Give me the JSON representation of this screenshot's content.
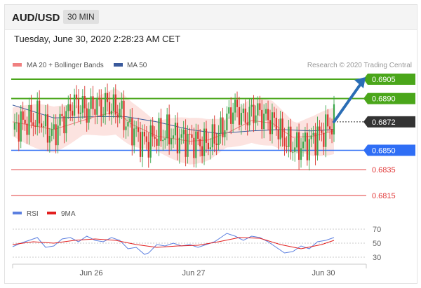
{
  "header": {
    "symbol": "AUD/USD",
    "timeframe": "30 MIN"
  },
  "datetime": "Tuesday, June 30, 2020 2:28:23 AM CET",
  "legend": {
    "ma20": "MA 20 + Bollinger Bands",
    "ma50": "MA 50",
    "credit": "Research © 2020 Trading Central",
    "rsi": "RSI",
    "ma9": "9MA"
  },
  "colors": {
    "ma20": "#f08080",
    "ma50": "#3a5a9c",
    "bands": "#fbd9d6",
    "bull": "#3aa64a",
    "bear": "#d9322b",
    "resistance": "#4aa61a",
    "support": "#2f6ef5",
    "weak_support": "#e23b3b",
    "current": "#333333",
    "rsi": "#5b7fe0",
    "rsi_ma": "#e21f1f",
    "arrow": "#2a6db5"
  },
  "chart_data": [
    {
      "type": "candlestick",
      "title": "AUD/USD",
      "timeframe": "30 MIN",
      "x_ticks": [
        "Jun 26",
        "Jun 27",
        "Jun 30"
      ],
      "ylim": [
        0.6806,
        0.6912
      ],
      "levels": [
        {
          "label": "0.6905",
          "value": 0.6905,
          "kind": "resistance"
        },
        {
          "label": "0.6890",
          "value": 0.689,
          "kind": "resistance"
        },
        {
          "label": "0.6872",
          "value": 0.6872,
          "kind": "current"
        },
        {
          "label": "0.6850",
          "value": 0.685,
          "kind": "support"
        },
        {
          "label": "0.6835",
          "value": 0.6835,
          "kind": "weak_support"
        },
        {
          "label": "0.6815",
          "value": 0.6815,
          "kind": "weak_support"
        }
      ],
      "arrow": {
        "from": 0.6872,
        "to": 0.6905
      },
      "close_path": [
        [
          0,
          0.6866
        ],
        [
          3,
          0.687
        ],
        [
          6,
          0.6872
        ],
        [
          10,
          0.6873
        ],
        [
          13,
          0.6876
        ],
        [
          16,
          0.6866
        ],
        [
          20,
          0.6862
        ],
        [
          23,
          0.6872
        ],
        [
          26,
          0.6876
        ],
        [
          29,
          0.6886
        ],
        [
          33,
          0.6884
        ],
        [
          36,
          0.688
        ],
        [
          40,
          0.6886
        ],
        [
          43,
          0.6882
        ],
        [
          46,
          0.6886
        ],
        [
          49,
          0.6882
        ],
        [
          52,
          0.6881
        ],
        [
          56,
          0.6868
        ],
        [
          59,
          0.6865
        ],
        [
          62,
          0.6858
        ],
        [
          66,
          0.6856
        ],
        [
          69,
          0.6862
        ],
        [
          72,
          0.6861
        ],
        [
          75,
          0.6864
        ],
        [
          79,
          0.686
        ],
        [
          82,
          0.6859
        ],
        [
          86,
          0.6858
        ],
        [
          89,
          0.6856
        ],
        [
          92,
          0.6855
        ],
        [
          95,
          0.6856
        ],
        [
          99,
          0.686
        ],
        [
          103,
          0.687
        ],
        [
          106,
          0.688
        ],
        [
          109,
          0.6882
        ],
        [
          112,
          0.6874
        ],
        [
          115,
          0.6878
        ],
        [
          118,
          0.688
        ],
        [
          122,
          0.6876
        ],
        [
          125,
          0.6873
        ],
        [
          128,
          0.687
        ],
        [
          131,
          0.686
        ],
        [
          135,
          0.6854
        ],
        [
          138,
          0.6852
        ],
        [
          141,
          0.6854
        ],
        [
          144,
          0.6856
        ],
        [
          147,
          0.686
        ],
        [
          150,
          0.6863
        ],
        [
          153,
          0.6868
        ],
        [
          156,
          0.6872
        ]
      ],
      "ma20": [
        [
          0,
          0.6872
        ],
        [
          20,
          0.6866
        ],
        [
          40,
          0.6876
        ],
        [
          50,
          0.688
        ],
        [
          58,
          0.687
        ],
        [
          70,
          0.6861
        ],
        [
          86,
          0.6857
        ],
        [
          95,
          0.6858
        ],
        [
          105,
          0.6864
        ],
        [
          116,
          0.6873
        ],
        [
          126,
          0.6871
        ],
        [
          136,
          0.686
        ],
        [
          146,
          0.6861
        ],
        [
          156,
          0.6865
        ]
      ],
      "ma50": [
        [
          0,
          0.6885
        ],
        [
          20,
          0.6875
        ],
        [
          40,
          0.6876
        ],
        [
          55,
          0.6876
        ],
        [
          70,
          0.6872
        ],
        [
          86,
          0.6866
        ],
        [
          100,
          0.6863
        ],
        [
          116,
          0.6865
        ],
        [
          130,
          0.6866
        ],
        [
          145,
          0.6865
        ],
        [
          156,
          0.6866
        ]
      ]
    },
    {
      "type": "line",
      "title": "RSI",
      "y_ticks": [
        "70",
        "50",
        "30"
      ],
      "ylim": [
        20,
        80
      ],
      "series": [
        {
          "name": "RSI",
          "values": [
            [
              0,
              45
            ],
            [
              4,
              50
            ],
            [
              8,
              54
            ],
            [
              12,
              58
            ],
            [
              16,
              44
            ],
            [
              20,
              46
            ],
            [
              24,
              56
            ],
            [
              28,
              58
            ],
            [
              32,
              52
            ],
            [
              36,
              60
            ],
            [
              40,
              54
            ],
            [
              44,
              52
            ],
            [
              48,
              58
            ],
            [
              52,
              54
            ],
            [
              56,
              42
            ],
            [
              60,
              44
            ],
            [
              64,
              34
            ],
            [
              66,
              36
            ],
            [
              70,
              48
            ],
            [
              74,
              46
            ],
            [
              78,
              50
            ],
            [
              82,
              46
            ],
            [
              86,
              48
            ],
            [
              90,
              44
            ],
            [
              94,
              48
            ],
            [
              98,
              52
            ],
            [
              102,
              60
            ],
            [
              104,
              64
            ],
            [
              108,
              60
            ],
            [
              112,
              54
            ],
            [
              116,
              60
            ],
            [
              120,
              58
            ],
            [
              124,
              52
            ],
            [
              128,
              44
            ],
            [
              132,
              36
            ],
            [
              136,
              38
            ],
            [
              140,
              46
            ],
            [
              144,
              42
            ],
            [
              148,
              52
            ],
            [
              152,
              54
            ],
            [
              156,
              58
            ]
          ]
        },
        {
          "name": "9MA",
          "values": [
            [
              0,
              48
            ],
            [
              10,
              52
            ],
            [
              20,
              50
            ],
            [
              30,
              54
            ],
            [
              40,
              56
            ],
            [
              50,
              54
            ],
            [
              60,
              48
            ],
            [
              70,
              44
            ],
            [
              80,
              46
            ],
            [
              90,
              47
            ],
            [
              100,
              52
            ],
            [
              110,
              58
            ],
            [
              120,
              57
            ],
            [
              130,
              48
            ],
            [
              140,
              42
            ],
            [
              150,
              48
            ],
            [
              156,
              54
            ]
          ]
        }
      ]
    }
  ]
}
